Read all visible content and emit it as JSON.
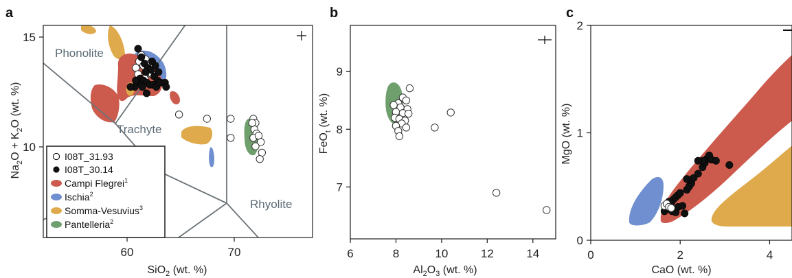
{
  "colors": {
    "campi_flegrei": "#cc5b4e",
    "ischia": "#6f8fd0",
    "somma_vesuvius": "#deaa4b",
    "pantelleria": "#6f9f6d",
    "tas_lines": "#6b7378",
    "open_point": "#ffffff",
    "closed_point": "#111111"
  },
  "legend": {
    "items": [
      {
        "label": "I08T_31.93",
        "marker": "open-circle",
        "sup": ""
      },
      {
        "label": "I08T_30.14",
        "marker": "filled-circle",
        "sup": ""
      },
      {
        "label": "Campi Flegrei",
        "marker": "campi-flegrei-swatch",
        "sup": "1"
      },
      {
        "label": "Ischia",
        "marker": "ischia-swatch",
        "sup": "2"
      },
      {
        "label": "Somma-Vesuvius",
        "marker": "somma-vesuvius-swatch",
        "sup": "3"
      },
      {
        "label": "Pantelleria",
        "marker": "pantelleria-swatch",
        "sup": "2"
      }
    ]
  },
  "chart_data": [
    {
      "panel": "a",
      "type": "scatter",
      "xlabel": {
        "main": "SiO",
        "sub": "2",
        "rest": " (wt. %)"
      },
      "ylabel_parts": [
        "Na",
        "2",
        "O + K",
        "2",
        "O (wt. %)"
      ],
      "xlim": [
        52,
        77
      ],
      "ylim": [
        5.5,
        15.5
      ],
      "xticks": [
        60,
        70
      ],
      "yticks": [
        10,
        15
      ],
      "field_labels": [
        "Phonolite",
        "Trachyte",
        "Rhyolite"
      ],
      "error_bar": "+",
      "series": [
        {
          "name": "I08T_31.93",
          "marker": "open",
          "points": [
            [
              60.6,
              13.5
            ],
            [
              60.9,
              13.8
            ],
            [
              61.1,
              14.1
            ],
            [
              61.3,
              13.6
            ],
            [
              61.5,
              13.9
            ],
            [
              61.7,
              13.3
            ],
            [
              61.9,
              13.7
            ],
            [
              62.1,
              13.2
            ],
            [
              62.3,
              13.6
            ],
            [
              61.0,
              12.9
            ],
            [
              60.8,
              13.2
            ],
            [
              61.4,
              13.0
            ],
            [
              64.6,
              11.3
            ],
            [
              67.2,
              11.1
            ],
            [
              69.4,
              11.1
            ],
            [
              69.4,
              10.2
            ],
            [
              71.5,
              11.1
            ],
            [
              71.7,
              10.9
            ],
            [
              71.6,
              10.6
            ],
            [
              71.8,
              10.4
            ],
            [
              71.5,
              10.2
            ],
            [
              72.0,
              10.3
            ],
            [
              72.2,
              10.0
            ],
            [
              71.7,
              9.8
            ],
            [
              72.3,
              9.5
            ],
            [
              72.1,
              9.2
            ],
            [
              71.4,
              10.9
            ]
          ]
        },
        {
          "name": "I08T_30.14",
          "marker": "filled",
          "points": [
            [
              60.8,
              14.4
            ],
            [
              61.1,
              14.0
            ],
            [
              61.4,
              13.7
            ],
            [
              61.7,
              13.5
            ],
            [
              62.0,
              13.4
            ],
            [
              62.3,
              13.1
            ],
            [
              62.6,
              12.9
            ],
            [
              62.9,
              12.8
            ],
            [
              61.0,
              13.0
            ],
            [
              61.3,
              12.9
            ],
            [
              61.6,
              12.8
            ],
            [
              61.9,
              12.7
            ],
            [
              62.2,
              12.7
            ],
            [
              62.5,
              12.6
            ],
            [
              62.8,
              12.8
            ],
            [
              63.3,
              12.8
            ],
            [
              63.4,
              12.6
            ],
            [
              60.7,
              12.8
            ],
            [
              61.2,
              12.6
            ],
            [
              60.5,
              12.6
            ],
            [
              60.1,
              12.6
            ],
            [
              61.6,
              12.3
            ],
            [
              62.4,
              13.6
            ],
            [
              62.1,
              13.8
            ],
            [
              60.6,
              12.9
            ],
            [
              61.5,
              13.3
            ],
            [
              62.7,
              13.3
            ]
          ]
        }
      ]
    },
    {
      "panel": "b",
      "type": "scatter",
      "xlabel": {
        "main": "Al",
        "sub": "2",
        "main2": "O",
        "sub2": "3",
        "rest": " (wt. %)"
      },
      "ylabel_parts": [
        "FeO",
        "t",
        " (wt. %)"
      ],
      "xlim": [
        6,
        15
      ],
      "ylim": [
        6.1,
        9.8
      ],
      "xticks": [
        6,
        8,
        10,
        12,
        14
      ],
      "yticks": [
        7,
        8,
        9
      ],
      "error_bar": "+",
      "series": [
        {
          "name": "I08T_31.93",
          "marker": "open",
          "points": [
            [
              8.6,
              8.71
            ],
            [
              8.3,
              8.55
            ],
            [
              8.45,
              8.5
            ],
            [
              8.1,
              8.45
            ],
            [
              7.9,
              8.42
            ],
            [
              8.2,
              8.38
            ],
            [
              8.5,
              8.35
            ],
            [
              8.0,
              8.3
            ],
            [
              8.3,
              8.28
            ],
            [
              8.55,
              8.27
            ],
            [
              7.95,
              8.2
            ],
            [
              8.15,
              8.18
            ],
            [
              8.4,
              8.15
            ],
            [
              8.25,
              8.1
            ],
            [
              8.0,
              8.06
            ],
            [
              8.45,
              8.03
            ],
            [
              8.1,
              7.97
            ],
            [
              8.15,
              7.88
            ],
            [
              9.7,
              8.03
            ],
            [
              10.4,
              8.29
            ],
            [
              12.4,
              6.9
            ],
            [
              14.6,
              6.6
            ]
          ]
        }
      ]
    },
    {
      "panel": "c",
      "type": "scatter",
      "xlabel": {
        "main": "CaO",
        "rest": " (wt. %)"
      },
      "ylabel_parts": [
        "MgO (wt. %)"
      ],
      "xlim": [
        0,
        4.5
      ],
      "ylim": [
        0,
        2
      ],
      "xticks": [
        0,
        2,
        4
      ],
      "yticks": [
        0,
        1,
        2
      ],
      "error_bar": "-",
      "series": [
        {
          "name": "I08T_30.14",
          "marker": "filled",
          "points": [
            [
              1.65,
              0.27
            ],
            [
              1.7,
              0.3
            ],
            [
              1.72,
              0.33
            ],
            [
              1.8,
              0.35
            ],
            [
              1.85,
              0.38
            ],
            [
              1.75,
              0.36
            ],
            [
              1.9,
              0.4
            ],
            [
              1.95,
              0.42
            ],
            [
              2.0,
              0.44
            ],
            [
              1.78,
              0.29
            ],
            [
              1.82,
              0.27
            ],
            [
              1.9,
              0.26
            ],
            [
              2.1,
              0.25
            ],
            [
              1.95,
              0.31
            ],
            [
              2.05,
              0.32
            ],
            [
              2.15,
              0.47
            ],
            [
              2.2,
              0.5
            ],
            [
              2.25,
              0.53
            ],
            [
              2.2,
              0.56
            ],
            [
              2.3,
              0.58
            ],
            [
              2.4,
              0.62
            ],
            [
              2.5,
              0.68
            ],
            [
              2.55,
              0.72
            ],
            [
              2.6,
              0.76
            ],
            [
              2.65,
              0.79
            ],
            [
              2.7,
              0.75
            ],
            [
              2.5,
              0.74
            ],
            [
              2.4,
              0.74
            ],
            [
              2.8,
              0.74
            ],
            [
              3.1,
              0.7
            ],
            [
              2.15,
              0.57
            ]
          ]
        },
        {
          "name": "I08T_31.93",
          "marker": "open",
          "points": [
            [
              1.65,
              0.32
            ],
            [
              1.7,
              0.34
            ],
            [
              1.75,
              0.31
            ],
            [
              1.8,
              0.3
            ]
          ]
        }
      ]
    }
  ]
}
